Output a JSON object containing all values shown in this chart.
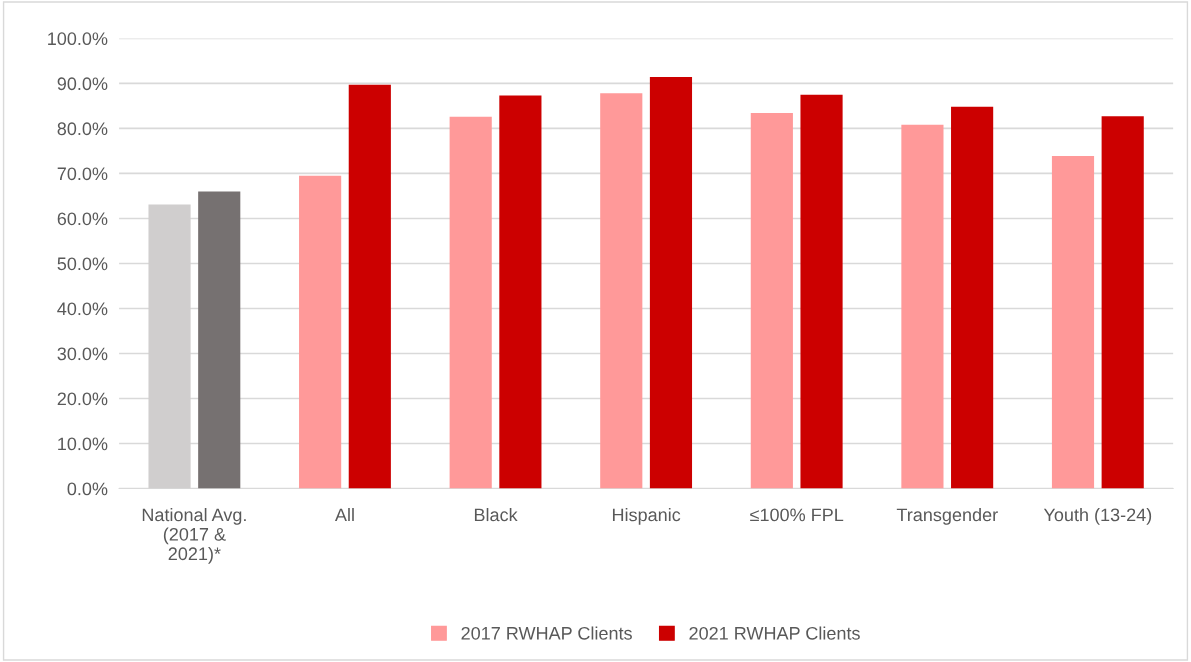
{
  "chart_data": {
    "type": "bar",
    "categories": [
      "National Avg.\n(2017 &\n2021)*",
      "All",
      "Black",
      "Hispanic",
      "≤100% FPL",
      "Transgender",
      "Youth (13-24)"
    ],
    "series": [
      {
        "name": "2017 RWHAP Clients",
        "color": "#ff9999",
        "colors": [
          "#d0cece",
          "#ff9999",
          "#ff9999",
          "#ff9999",
          "#ff9999",
          "#ff9999",
          "#ff9999"
        ],
        "values": [
          63.1,
          69.5,
          82.6,
          87.8,
          83.4,
          80.8,
          73.9
        ]
      },
      {
        "name": "2021 RWHAP Clients",
        "color": "#cc0000",
        "colors": [
          "#767171",
          "#cc0000",
          "#cc0000",
          "#cc0000",
          "#cc0000",
          "#cc0000",
          "#cc0000"
        ],
        "values": [
          66.0,
          89.7,
          87.3,
          91.4,
          87.5,
          84.8,
          82.7
        ]
      }
    ],
    "ylim": [
      0,
      100
    ],
    "yticks": [
      {
        "value": 0,
        "label": "0.0%"
      },
      {
        "value": 10,
        "label": "10.0%"
      },
      {
        "value": 20,
        "label": "20.0%"
      },
      {
        "value": 30,
        "label": "30.0%"
      },
      {
        "value": 40,
        "label": "40.0%"
      },
      {
        "value": 50,
        "label": "50.0%"
      },
      {
        "value": 60,
        "label": "60.0%"
      },
      {
        "value": 70,
        "label": "70.0%"
      },
      {
        "value": 80,
        "label": "80.0%"
      },
      {
        "value": 90,
        "label": "90.0%"
      },
      {
        "value": 100,
        "label": "100.0%"
      }
    ],
    "grid": "y",
    "legend": "bottom"
  }
}
